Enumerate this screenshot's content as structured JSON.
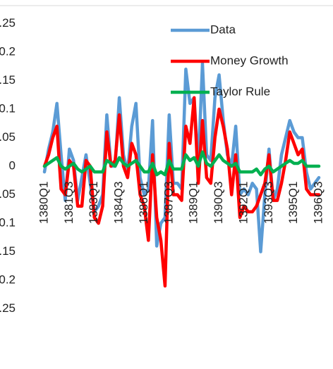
{
  "chart_data": {
    "type": "line",
    "categories": [
      "1380Q1",
      null,
      null,
      null,
      null,
      null,
      "1381Q3",
      null,
      null,
      null,
      null,
      null,
      "1383Q1",
      null,
      null,
      null,
      null,
      null,
      "1384Q3",
      null,
      null,
      null,
      null,
      null,
      "1386Q1",
      null,
      null,
      null,
      null,
      null,
      "1387Q3",
      null,
      null,
      null,
      null,
      null,
      "1389Q1",
      null,
      null,
      null,
      null,
      null,
      "1390Q3",
      null,
      null,
      null,
      null,
      null,
      "1392Q1",
      null,
      null,
      null,
      null,
      null,
      "1393Q3",
      null,
      null,
      null,
      null,
      null,
      "1395Q1",
      null,
      null,
      null,
      null,
      null,
      "1396Q3"
    ],
    "series": [
      {
        "name": "Data",
        "color": "#5b9bd5",
        "values": [
          -0.01,
          0.03,
          0.06,
          0.11,
          0.02,
          -0.06,
          0.03,
          0.01,
          -0.06,
          -0.02,
          0.02,
          -0.03,
          -0.08,
          -0.07,
          -0.05,
          0.09,
          0.0,
          0.0,
          0.12,
          0.02,
          -0.01,
          0.07,
          0.11,
          -0.02,
          -0.05,
          -0.04,
          0.08,
          -0.14,
          -0.1,
          -0.09,
          0.09,
          -0.03,
          -0.03,
          -0.04,
          0.17,
          0.11,
          0.12,
          0.0,
          0.18,
          0.02,
          0.01,
          0.12,
          0.16,
          0.08,
          0.02,
          0.0,
          0.07,
          -0.05,
          -0.04,
          -0.05,
          -0.03,
          -0.04,
          -0.15,
          -0.05,
          0.03,
          -0.06,
          -0.04,
          0.02,
          0.05,
          0.08,
          0.06,
          0.05,
          0.05,
          -0.01,
          -0.04,
          -0.03,
          -0.02
        ]
      },
      {
        "name": "Money Growth",
        "color": "#ff0000",
        "values": [
          0.0,
          0.02,
          0.05,
          0.07,
          -0.04,
          -0.05,
          0.01,
          0.0,
          -0.07,
          -0.07,
          0.01,
          0.0,
          -0.09,
          -0.1,
          -0.07,
          0.06,
          0.0,
          0.01,
          0.09,
          0.0,
          -0.02,
          0.04,
          0.02,
          -0.05,
          -0.07,
          -0.13,
          0.02,
          -0.09,
          -0.13,
          -0.21,
          0.04,
          -0.05,
          -0.05,
          -0.06,
          0.07,
          0.04,
          0.12,
          -0.03,
          0.08,
          -0.02,
          -0.03,
          0.05,
          0.1,
          0.07,
          0.03,
          -0.05,
          0.02,
          -0.09,
          -0.07,
          -0.08,
          -0.08,
          -0.07,
          -0.05,
          -0.03,
          0.02,
          -0.06,
          -0.06,
          -0.03,
          0.01,
          0.06,
          0.04,
          0.02,
          0.03,
          -0.04,
          -0.05,
          -0.05,
          -0.05
        ]
      },
      {
        "name": "Taylor Rule",
        "color": "#00b050",
        "values": [
          0.0,
          0.005,
          0.01,
          0.015,
          0.0,
          -0.005,
          0.0,
          0.005,
          -0.005,
          -0.01,
          -0.005,
          0.0,
          -0.01,
          -0.01,
          -0.01,
          0.01,
          0.005,
          0.0,
          0.015,
          0.005,
          0.0,
          0.005,
          0.01,
          0.0,
          -0.01,
          -0.01,
          0.005,
          -0.015,
          -0.01,
          -0.015,
          0.01,
          -0.005,
          -0.005,
          -0.005,
          0.02,
          0.01,
          0.015,
          0.0,
          0.025,
          0.005,
          0.0,
          0.01,
          0.02,
          0.01,
          0.005,
          0.0,
          0.005,
          -0.01,
          -0.01,
          -0.01,
          -0.01,
          -0.005,
          -0.015,
          -0.005,
          0.0,
          -0.01,
          -0.005,
          0.0,
          0.005,
          0.01,
          0.005,
          0.005,
          0.01,
          0.0,
          0.0,
          0.0,
          0.0
        ]
      }
    ],
    "ylim": [
      -0.25,
      0.25
    ],
    "yticks": [
      0.25,
      0.2,
      0.15,
      0.1,
      0.05,
      0,
      -0.05,
      -0.1,
      -0.15,
      -0.2,
      -0.25
    ],
    "grid": false,
    "legend": "top-right"
  }
}
